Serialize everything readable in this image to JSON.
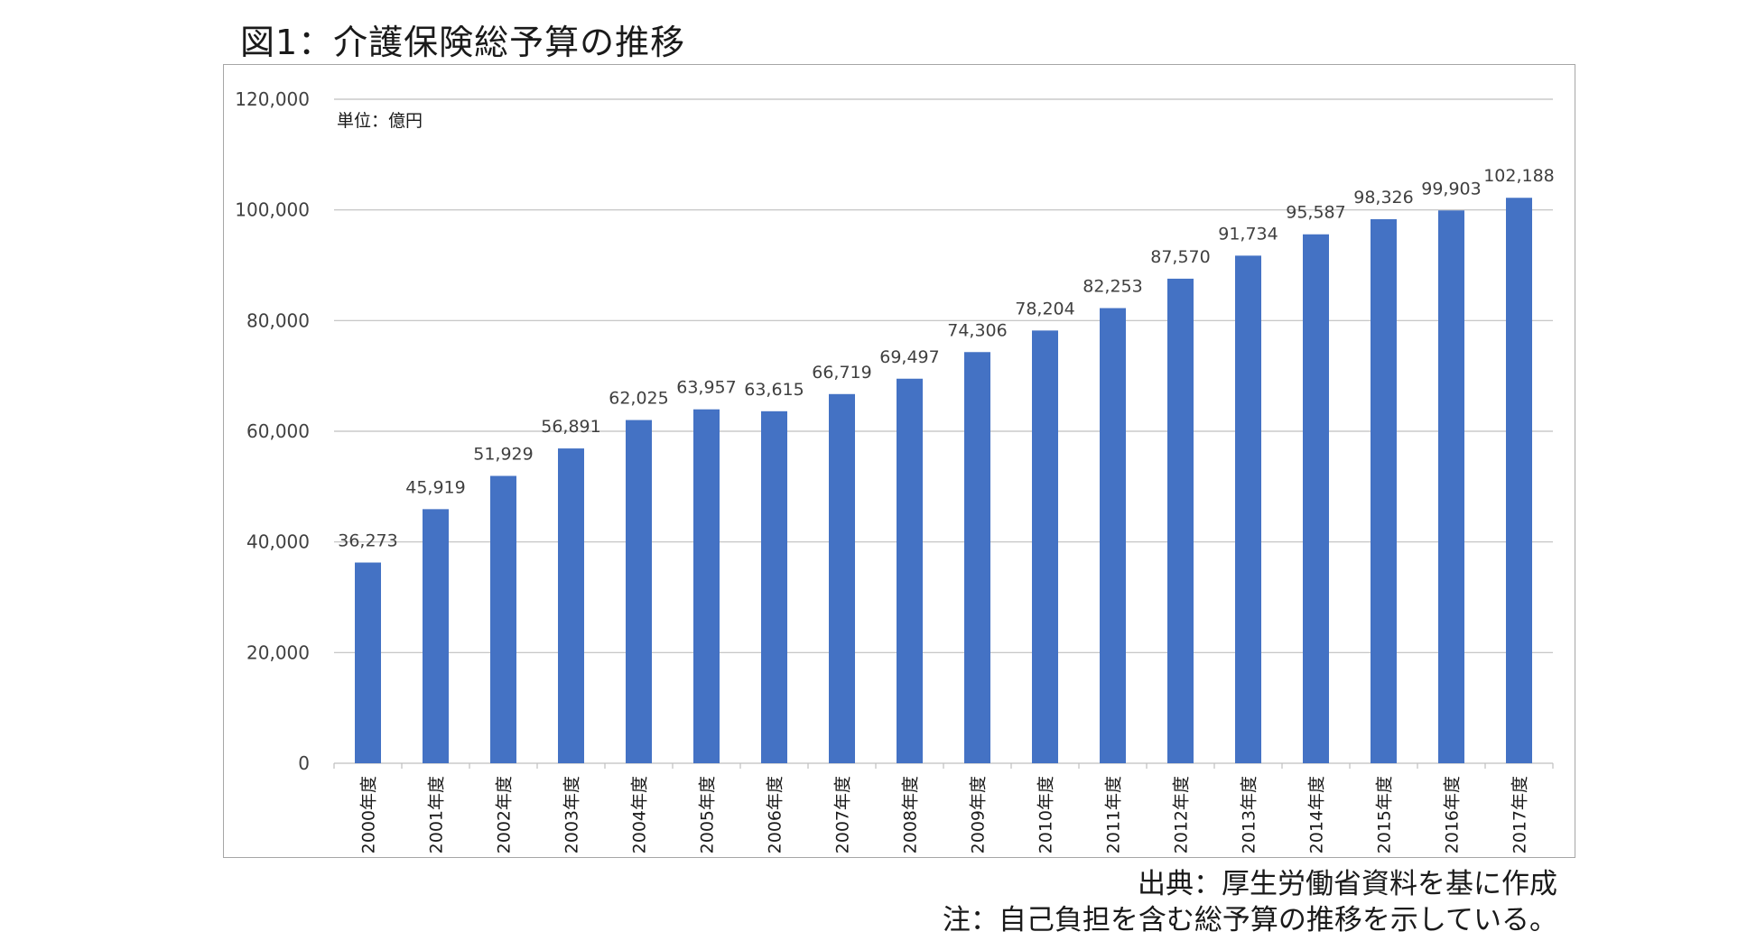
{
  "figure": {
    "title": "図1：介護保険総予算の推移",
    "source": "出典：厚生労働省資料を基に作成",
    "note": "注：自己負担を含む総予算の推移を示している。"
  },
  "chart_data": {
    "type": "bar",
    "title": "",
    "xlabel": "",
    "ylabel": "",
    "unit_label": "単位：億円",
    "categories": [
      "2000年度",
      "2001年度",
      "2002年度",
      "2003年度",
      "2004年度",
      "2005年度",
      "2006年度",
      "2007年度",
      "2008年度",
      "2009年度",
      "2010年度",
      "2011年度",
      "2012年度",
      "2013年度",
      "2014年度",
      "2015年度",
      "2016年度",
      "2017年度"
    ],
    "values": [
      36273,
      45919,
      51929,
      56891,
      62025,
      63957,
      63615,
      66719,
      69497,
      74306,
      78204,
      82253,
      87570,
      91734,
      95587,
      98326,
      99903,
      102188
    ],
    "data_labels": [
      "36,273",
      "45,919",
      "51,929",
      "56,891",
      "62,025",
      "63,957",
      "63,615",
      "66,719",
      "69,497",
      "74,306",
      "78,204",
      "82,253",
      "87,570",
      "91,734",
      "95,587",
      "98,326",
      "99,903",
      "102,188"
    ],
    "ylim": [
      0,
      120000
    ],
    "yticks": [
      0,
      20000,
      40000,
      60000,
      80000,
      100000,
      120000
    ],
    "ytick_labels": [
      "0",
      "20,000",
      "40,000",
      "60,000",
      "80,000",
      "100,000",
      "120,000"
    ],
    "grid": true,
    "legend": "none",
    "colors": {
      "bar": "#4472c4",
      "grid": "#bfbfbf",
      "axis_text": "#404040",
      "frame": "#a6a6a6"
    }
  }
}
